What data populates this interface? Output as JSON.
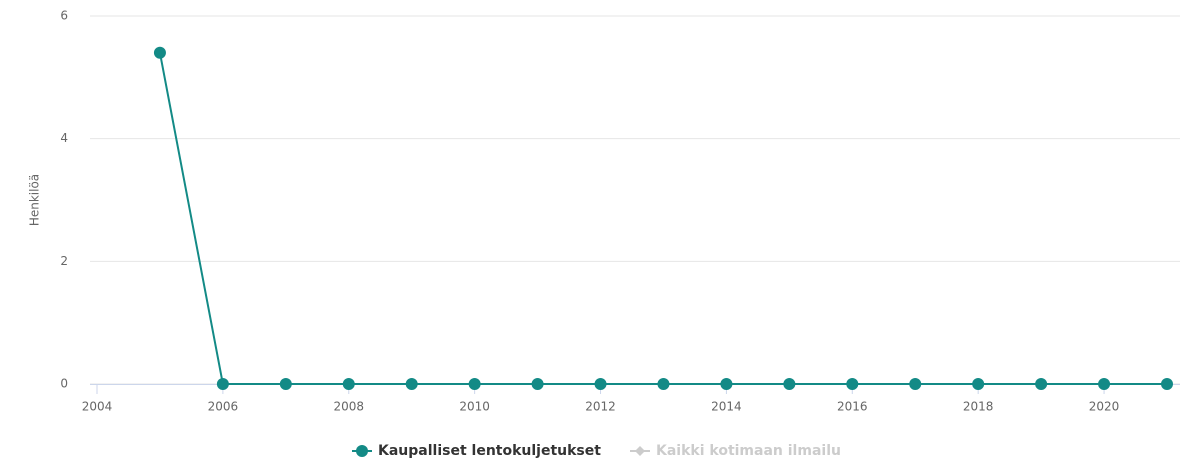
{
  "chart_data": {
    "type": "line",
    "y_label": "Henkilöä",
    "x": [
      2005,
      2006,
      2007,
      2008,
      2009,
      2010,
      2011,
      2012,
      2013,
      2014,
      2015,
      2016,
      2017,
      2018,
      2019,
      2020,
      2021
    ],
    "series": [
      {
        "name": "Kaupalliset lentokuljetukset",
        "color": "#138a86",
        "values": [
          5.4,
          0,
          0,
          0,
          0,
          0,
          0,
          0,
          0,
          0,
          0,
          0,
          0,
          0,
          0,
          0,
          0
        ]
      },
      {
        "name": "Kaikki kotimaan ilmailu",
        "color": "#cccccc",
        "visible": false
      }
    ],
    "xlim": [
      2004,
      2021
    ],
    "xticks": [
      2004,
      2006,
      2008,
      2010,
      2012,
      2014,
      2016,
      2018,
      2020
    ],
    "ylim": [
      0,
      6
    ],
    "yticks": [
      0,
      2,
      4,
      6
    ],
    "grid": true
  }
}
